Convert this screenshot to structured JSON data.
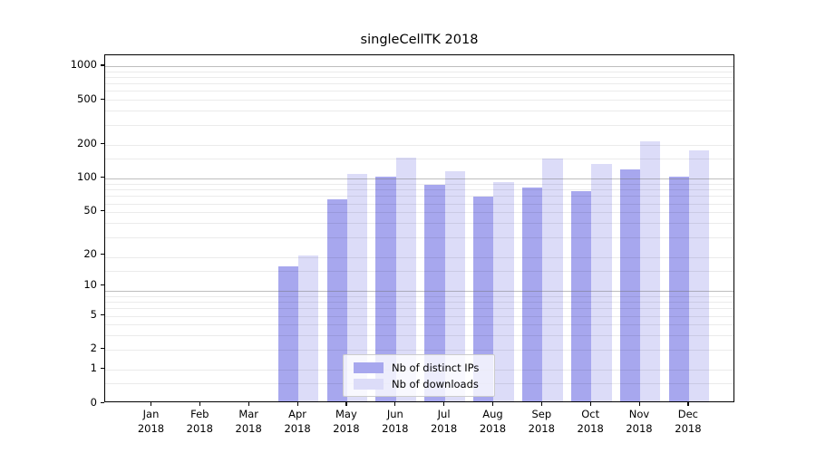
{
  "title": "singleCellTK 2018",
  "legend": {
    "entries": [
      {
        "label": "Nb of distinct IPs",
        "color": "#a7a7ee"
      },
      {
        "label": "Nb of downloads",
        "color": "#dcdcf8"
      }
    ]
  },
  "chart_data": {
    "type": "bar",
    "title": "singleCellTK 2018",
    "categories": [
      "Jan 2018",
      "Feb 2018",
      "Mar 2018",
      "Apr 2018",
      "May 2018",
      "Jun 2018",
      "Jul 2018",
      "Aug 2018",
      "Sep 2018",
      "Oct 2018",
      "Nov 2018",
      "Dec 2018"
    ],
    "series": [
      {
        "name": "Nb of distinct IPs",
        "color": "#a7a7ee",
        "values": [
          0,
          0,
          0,
          15,
          62,
          99,
          84,
          66,
          79,
          73,
          116,
          99
        ]
      },
      {
        "name": "Nb of downloads",
        "color": "#dcdcf8",
        "values": [
          0,
          0,
          0,
          19,
          105,
          147,
          111,
          88,
          145,
          128,
          205,
          171
        ]
      }
    ],
    "yscale": "log10(1+value)",
    "yticks": [
      0,
      1,
      2,
      5,
      10,
      20,
      50,
      100,
      200,
      500,
      1000
    ],
    "ylim": [
      0,
      1250
    ],
    "grid": "horizontal, minor log subdivisions, drawn over bars",
    "legend_position": "lower center inside plot",
    "xlabel": "",
    "ylabel": ""
  }
}
